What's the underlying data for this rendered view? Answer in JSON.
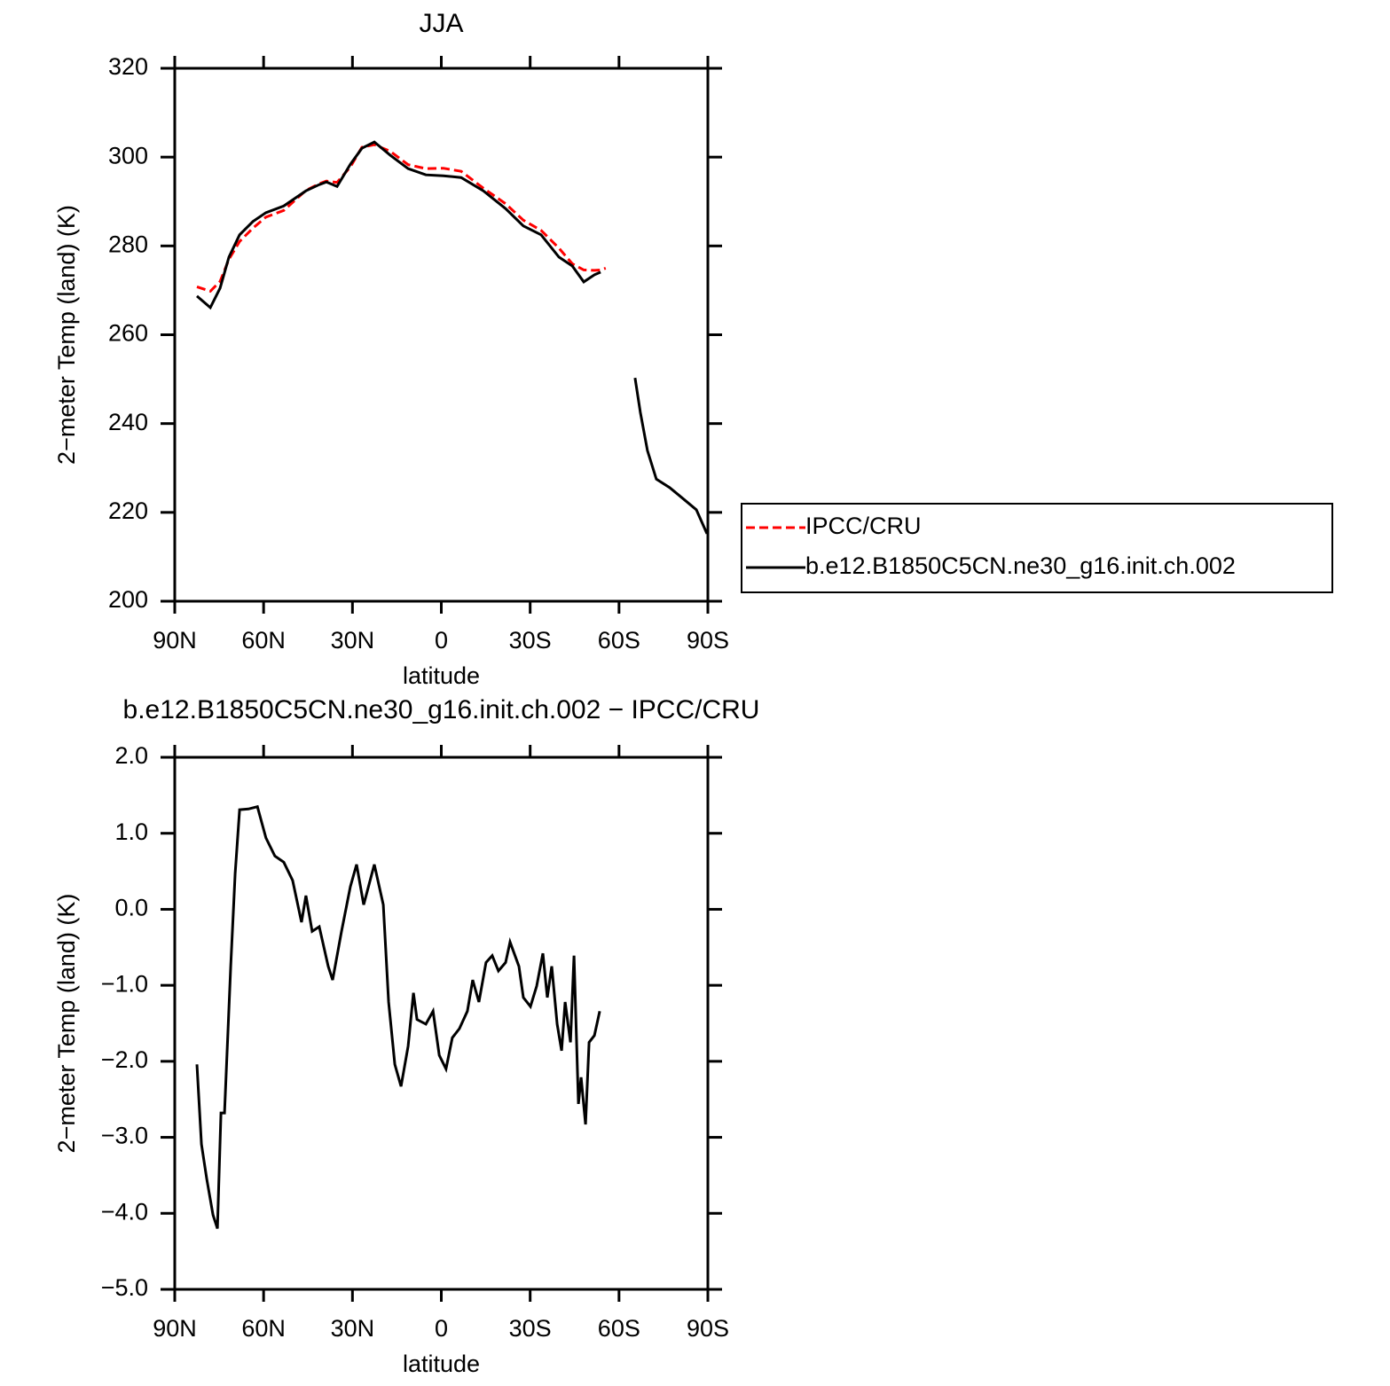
{
  "chart_data": [
    {
      "type": "line",
      "title": "JJA",
      "x_label": "latitude",
      "y_label": "2−meter Temp (land) (K)",
      "x": [
        82.5,
        78,
        74.7,
        71.7,
        68.1,
        63.6,
        59.2,
        53.2,
        45.7,
        41.2,
        38.8,
        35.2,
        30.7,
        26.8,
        22.6,
        17.2,
        11.2,
        5.2,
        -0.7,
        -6.7,
        -14.2,
        -21.7,
        -27.7,
        -33.7,
        -39.7,
        -44.2,
        -48.1,
        -51.7,
        -53.8,
        -55.5,
        -65.4,
        -67.2,
        -69.6,
        -72.6,
        -77.1,
        -81.6,
        -86.1,
        -89.7
      ],
      "series": [
        {
          "name": "IPCC/CRU",
          "color": "#ff0000",
          "line_style": "dashed",
          "values": [
            270.8,
            269.8,
            272,
            277,
            281,
            284,
            286.5,
            288,
            292.5,
            294,
            294.6,
            294.3,
            297.8,
            302.2,
            302.8,
            301.3,
            298.3,
            297.4,
            297.5,
            296.8,
            293,
            289.5,
            285.8,
            283.5,
            279.5,
            276,
            274.6,
            274.5,
            274.6,
            275,
            null,
            null,
            null,
            null,
            null,
            null,
            null,
            null
          ]
        },
        {
          "name": "b.e12.B1850C5CN.ne30_g16.init.ch.002",
          "color": "#000000",
          "line_style": "solid",
          "values": [
            268.7,
            266.1,
            270.5,
            277.5,
            282.5,
            285.5,
            287.5,
            289,
            292.4,
            293.8,
            294.4,
            293.4,
            298.4,
            302,
            303.4,
            300.4,
            297.4,
            296,
            295.8,
            295.4,
            292.4,
            288.4,
            284.5,
            282.5,
            277.5,
            275.5,
            271.9,
            273.5,
            274.1,
            null,
            250.3,
            242.5,
            233.9,
            227.5,
            225.6,
            223.1,
            220.6,
            215.2
          ]
        }
      ],
      "xlim": [
        90,
        -90
      ],
      "xticks": [
        {
          "value": 90,
          "label": "90N"
        },
        {
          "value": 60,
          "label": "60N"
        },
        {
          "value": 30,
          "label": "30N"
        },
        0,
        {
          "value": -30,
          "label": "30S"
        },
        {
          "value": -60,
          "label": "60S"
        },
        {
          "value": -90,
          "label": "90S"
        }
      ],
      "ylim": [
        200,
        320
      ],
      "yticks": [
        200,
        220,
        240,
        260,
        280,
        300,
        320
      ],
      "legend": "right"
    },
    {
      "type": "line",
      "title": "b.e12.B1850C5CN.ne30_g16.init.ch.002 − IPCC/CRU",
      "x_label": "latitude",
      "y_label": "2−meter Temp (land) (K)",
      "x": [
        82.5,
        81,
        79.2,
        77.1,
        75.6,
        74.4,
        73.2,
        71.1,
        69.6,
        68.1,
        65.1,
        62.1,
        59.2,
        56.2,
        53.2,
        50.2,
        47.2,
        45.7,
        43.6,
        41.2,
        38.2,
        36.7,
        33.7,
        30.7,
        28.6,
        26.2,
        22.6,
        19.6,
        17.8,
        15.7,
        13.6,
        11.2,
        9.4,
        8.2,
        5.2,
        2.8,
        0.7,
        -1.6,
        -3.7,
        -6.1,
        -8.8,
        -10.6,
        -12.7,
        -15.1,
        -17.2,
        -19.3,
        -21.7,
        -23.2,
        -26.2,
        -27.7,
        -30.1,
        -32.2,
        -34.3,
        -35.8,
        -37.3,
        -39.1,
        -40.6,
        -41.8,
        -43.6,
        -44.8,
        -46.3,
        -47.2,
        -48.7,
        -49.9,
        -51.7,
        -53.5
      ],
      "series": [
        {
          "name": "b.e12.B1850C5CN.ne30_g16.init.ch.002 − IPCC/CRU",
          "color": "#000000",
          "line_style": "solid",
          "values": [
            -2.04,
            -3.09,
            -3.55,
            -4.02,
            -4.2,
            -2.68,
            -2.68,
            -0.75,
            0.47,
            1.31,
            1.32,
            1.35,
            0.94,
            0.7,
            0.62,
            0.38,
            -0.17,
            0.18,
            -0.29,
            -0.23,
            -0.75,
            -0.93,
            -0.29,
            0.3,
            0.59,
            0.06,
            0.59,
            0.06,
            -1.22,
            -2.04,
            -2.33,
            -1.8,
            -1.1,
            -1.45,
            -1.51,
            -1.34,
            -1.92,
            -2.1,
            -1.69,
            -1.57,
            -1.34,
            -0.93,
            -1.22,
            -0.7,
            -0.61,
            -0.81,
            -0.7,
            -0.43,
            -0.75,
            -1.16,
            -1.28,
            -1.01,
            -0.58,
            -1.16,
            -0.75,
            -1.51,
            -1.86,
            -1.22,
            -1.75,
            -0.61,
            -2.56,
            -2.21,
            -2.83,
            -1.75,
            -1.66,
            -1.34
          ]
        }
      ],
      "xlim": [
        90,
        -90
      ],
      "xticks": [
        {
          "value": 90,
          "label": "90N"
        },
        {
          "value": 60,
          "label": "60N"
        },
        {
          "value": 30,
          "label": "30N"
        },
        0,
        {
          "value": -30,
          "label": "30S"
        },
        {
          "value": -60,
          "label": "60S"
        },
        {
          "value": -90,
          "label": "90S"
        }
      ],
      "ylim": [
        -5,
        2
      ],
      "yticks": [
        {
          "value": -5,
          "label": "−5.0"
        },
        {
          "value": -4,
          "label": "−4.0"
        },
        {
          "value": -3,
          "label": "−3.0"
        },
        {
          "value": -2,
          "label": "−2.0"
        },
        {
          "value": -1,
          "label": "−1.0"
        },
        {
          "value": 0,
          "label": "0.0"
        },
        {
          "value": 1,
          "label": "1.0"
        },
        {
          "value": 2,
          "label": "2.0"
        }
      ]
    }
  ]
}
